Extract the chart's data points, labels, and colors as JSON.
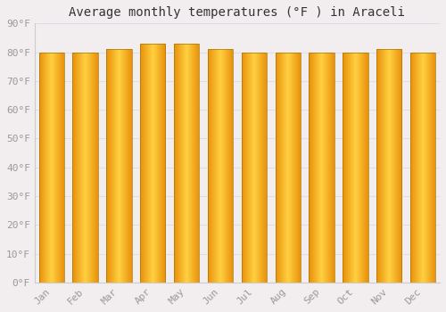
{
  "title": "Average monthly temperatures (°F ) in Araceli",
  "months": [
    "Jan",
    "Feb",
    "Mar",
    "Apr",
    "May",
    "Jun",
    "Jul",
    "Aug",
    "Sep",
    "Oct",
    "Nov",
    "Dec"
  ],
  "values": [
    80,
    80,
    81,
    83,
    83,
    81,
    80,
    80,
    80,
    80,
    81,
    80
  ],
  "bar_color_edge": "#E8900A",
  "bar_color_center": "#FFD040",
  "bar_edge_color": "#CC8800",
  "background_color": "#F2EEF0",
  "grid_color": "#DDDDEE",
  "ylim": [
    0,
    90
  ],
  "yticks": [
    0,
    10,
    20,
    30,
    40,
    50,
    60,
    70,
    80,
    90
  ],
  "ytick_labels": [
    "0°F",
    "10°F",
    "20°F",
    "30°F",
    "40°F",
    "50°F",
    "60°F",
    "70°F",
    "80°F",
    "90°F"
  ],
  "tick_color": "#999999",
  "title_fontsize": 10,
  "tick_fontsize": 8,
  "font_family": "monospace",
  "bar_width": 0.75
}
